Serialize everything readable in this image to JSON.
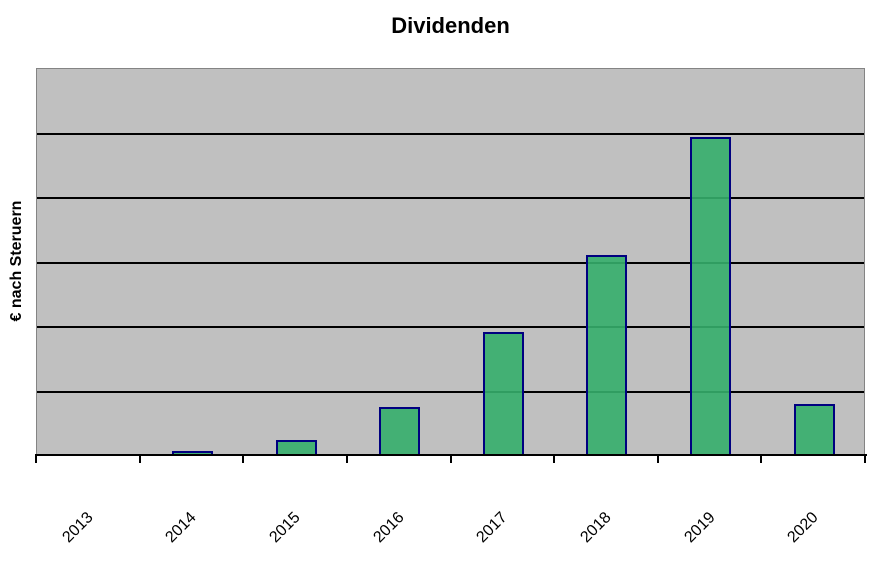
{
  "chart_data": {
    "type": "bar",
    "title": "Dividenden",
    "xlabel": "",
    "ylabel": "€ nach Steruern",
    "categories": [
      "2013",
      "2014",
      "2015",
      "2016",
      "2017",
      "2018",
      "2019",
      "2020"
    ],
    "values": [
      0,
      0.06,
      0.24,
      0.75,
      1.91,
      3.1,
      4.93,
      0.79
    ],
    "values_note": "No numeric y-axis tick labels are visible; values are estimated in gridline units (1 unit = one horizontal gridline interval)",
    "ylim": [
      0,
      6
    ],
    "y_tick_labels": [],
    "gridlines": {
      "horizontal_internal_count": 5,
      "style": "solid"
    },
    "legend": "none",
    "plot_style": "vertical bars on gray plot background, classic spreadsheet chart look",
    "colors": {
      "bar_fill": "#42B476",
      "bar_border": "#000080",
      "plot_background": "#C0C0C0",
      "plot_border": "#848484",
      "gridline": "#000000",
      "axis_line": "#000000",
      "figure_background": "#FFFFFF",
      "text": "#000000"
    }
  }
}
